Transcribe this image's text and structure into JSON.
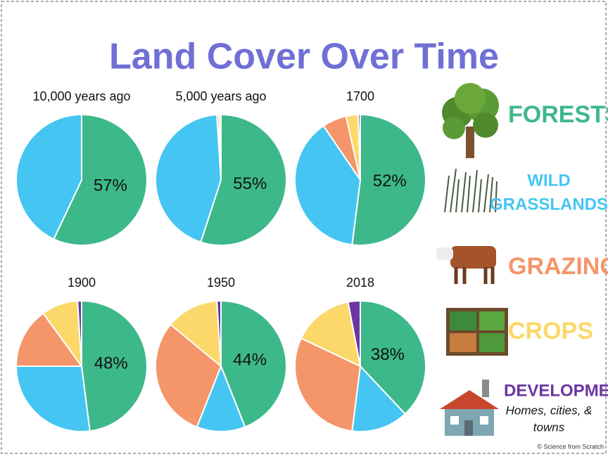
{
  "title": "Land Cover Over Time",
  "legend": [
    {
      "lines": [
        "FORESTS"
      ],
      "color": "#3db88a"
    },
    {
      "lines": [
        "WILD",
        "GRASSLANDS"
      ],
      "color": "#45c5f2"
    },
    {
      "lines": [
        "GRAZING"
      ],
      "color": "#f4956a"
    },
    {
      "lines": [
        "CROPS"
      ],
      "color": "#fbd869"
    },
    {
      "lines": [
        "DEVELOPMENT"
      ],
      "color": "#6b35a3",
      "note": [
        "Homes, cities, &",
        "towns"
      ]
    }
  ],
  "credit": "© Science from Scratch",
  "chart_data": [
    {
      "type": "pie",
      "title": "10,000 years ago",
      "values": [
        57,
        43,
        0,
        0,
        0
      ],
      "value_labels": [
        "57%",
        null,
        null,
        null,
        null
      ]
    },
    {
      "type": "pie",
      "title": "5,000 years ago",
      "values": [
        55,
        44,
        0.5,
        0.5,
        0
      ],
      "value_labels": [
        "55%",
        null,
        null,
        null,
        null
      ]
    },
    {
      "type": "pie",
      "title": "1700",
      "values": [
        52,
        38.5,
        6,
        3,
        0.5
      ],
      "value_labels": [
        "52%",
        null,
        null,
        null,
        null
      ]
    },
    {
      "type": "pie",
      "title": "1900",
      "values": [
        48,
        27,
        15,
        9,
        1
      ],
      "value_labels": [
        "48%",
        null,
        null,
        null,
        null
      ]
    },
    {
      "type": "pie",
      "title": "1950",
      "values": [
        44,
        12,
        30,
        13,
        1
      ],
      "value_labels": [
        "44%",
        null,
        null,
        null,
        null
      ]
    },
    {
      "type": "pie",
      "title": "2018",
      "values": [
        38,
        14,
        30,
        15,
        3
      ],
      "value_labels": [
        "38%",
        null,
        null,
        null,
        null
      ]
    }
  ]
}
